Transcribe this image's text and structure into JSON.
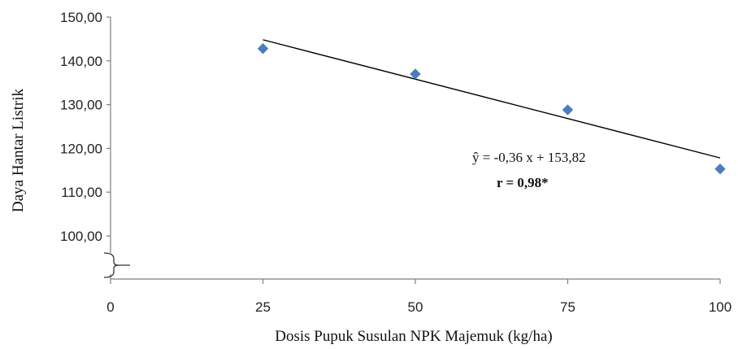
{
  "chart_data": {
    "type": "scatter",
    "title": "",
    "xlabel": "Dosis Pupuk Susulan NPK Majemuk (kg/ha)",
    "ylabel": "Daya Hantar Listrik",
    "x_ticks": [
      "0",
      "25",
      "50",
      "75",
      "100"
    ],
    "y_ticks": [
      "100,00",
      "110,00",
      "120,00",
      "130,00",
      "140,00",
      "150,00"
    ],
    "xlim": [
      0,
      100
    ],
    "ylim": [
      100,
      150
    ],
    "axis_break": true,
    "grid": false,
    "series": [
      {
        "x": [
          25,
          50,
          75,
          100
        ],
        "y": [
          142.8,
          137.0,
          128.8,
          115.3
        ],
        "color": "#4a7ebb",
        "marker": "diamond"
      }
    ],
    "trendline": {
      "slope": -0.36,
      "intercept": 153.82,
      "x_range": [
        25,
        100
      ],
      "color": "#000000"
    },
    "annotations": {
      "equation": "ŷ = -0,36  x + 153,82",
      "r_value": "r = 0,98*"
    }
  }
}
